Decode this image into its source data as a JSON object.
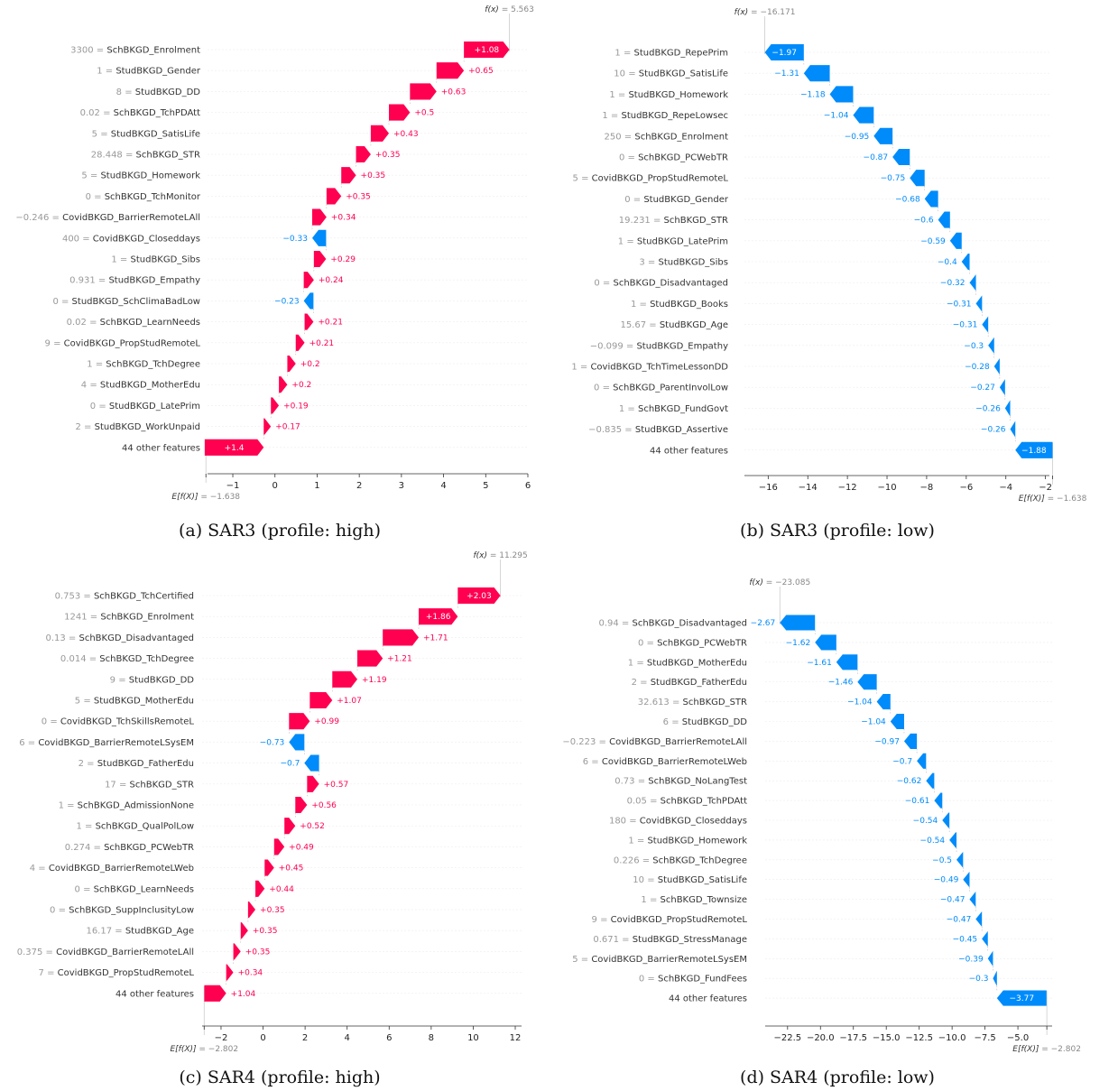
{
  "colors": {
    "positive": "#ff0051",
    "negative": "#008bfb",
    "axis": "#333333",
    "refline": "#dddddd"
  },
  "chart_data": [
    {
      "type": "waterfall",
      "caption": "(a) SAR3 (profile: high)",
      "fx": "5.563",
      "efx": "−1.638",
      "xlim": [
        -1.6,
        6
      ],
      "xticks": [
        -1,
        0,
        1,
        2,
        3,
        4,
        5,
        6
      ],
      "xtick_labels": [
        "−1",
        "0",
        "1",
        "2",
        "3",
        "4",
        "5",
        "6"
      ],
      "base_value": -1.638,
      "output_value": 5.563,
      "features": [
        {
          "value": "3300",
          "name": "SchBKGD_Enrolment",
          "shap": 1.08,
          "label": "+1.08"
        },
        {
          "value": "1",
          "name": "StudBKGD_Gender",
          "shap": 0.65,
          "label": "+0.65"
        },
        {
          "value": "8",
          "name": "StudBKGD_DD",
          "shap": 0.63,
          "label": "+0.63"
        },
        {
          "value": "0.02",
          "name": "SchBKGD_TchPDAtt",
          "shap": 0.5,
          "label": "+0.5"
        },
        {
          "value": "5",
          "name": "StudBKGD_SatisLife",
          "shap": 0.43,
          "label": "+0.43"
        },
        {
          "value": "28.448",
          "name": "SchBKGD_STR",
          "shap": 0.35,
          "label": "+0.35"
        },
        {
          "value": "5",
          "name": "StudBKGD_Homework",
          "shap": 0.35,
          "label": "+0.35"
        },
        {
          "value": "0",
          "name": "SchBKGD_TchMonitor",
          "shap": 0.35,
          "label": "+0.35"
        },
        {
          "value": "−0.246",
          "name": "CovidBKGD_BarrierRemoteLAll",
          "shap": 0.34,
          "label": "+0.34"
        },
        {
          "value": "400",
          "name": "CovidBKGD_Closeddays",
          "shap": -0.33,
          "label": "−0.33"
        },
        {
          "value": "1",
          "name": "StudBKGD_Sibs",
          "shap": 0.29,
          "label": "+0.29"
        },
        {
          "value": "0.931",
          "name": "StudBKGD_Empathy",
          "shap": 0.24,
          "label": "+0.24"
        },
        {
          "value": "0",
          "name": "StudBKGD_SchClimaBadLow",
          "shap": -0.23,
          "label": "−0.23"
        },
        {
          "value": "0.02",
          "name": "SchBKGD_LearnNeeds",
          "shap": 0.21,
          "label": "+0.21"
        },
        {
          "value": "9",
          "name": "CovidBKGD_PropStudRemoteL",
          "shap": 0.21,
          "label": "+0.21"
        },
        {
          "value": "1",
          "name": "SchBKGD_TchDegree",
          "shap": 0.2,
          "label": "+0.2"
        },
        {
          "value": "4",
          "name": "StudBKGD_MotherEdu",
          "shap": 0.2,
          "label": "+0.2"
        },
        {
          "value": "0",
          "name": "StudBKGD_LatePrim",
          "shap": 0.19,
          "label": "+0.19"
        },
        {
          "value": "2",
          "name": "StudBKGD_WorkUnpaid",
          "shap": 0.17,
          "label": "+0.17"
        },
        {
          "value": "",
          "name": "44 other features",
          "shap": 1.4,
          "label": "+1.4"
        }
      ]
    },
    {
      "type": "waterfall",
      "caption": "(b) SAR3 (profile: low)",
      "fx": "−16.171",
      "efx": "−1.638",
      "xlim": [
        -17.2,
        -1.8
      ],
      "xticks": [
        -16,
        -14,
        -12,
        -10,
        -8,
        -6,
        -4,
        -2
      ],
      "xtick_labels": [
        "−16",
        "−14",
        "−12",
        "−10",
        "−8",
        "−6",
        "−4",
        "−2"
      ],
      "base_value": -1.638,
      "output_value": -16.171,
      "features": [
        {
          "value": "1",
          "name": "StudBKGD_RepePrim",
          "shap": -1.97,
          "label": "−1.97"
        },
        {
          "value": "10",
          "name": "StudBKGD_SatisLife",
          "shap": -1.31,
          "label": "−1.31"
        },
        {
          "value": "1",
          "name": "StudBKGD_Homework",
          "shap": -1.18,
          "label": "−1.18"
        },
        {
          "value": "1",
          "name": "StudBKGD_RepeLowsec",
          "shap": -1.04,
          "label": "−1.04"
        },
        {
          "value": "250",
          "name": "SchBKGD_Enrolment",
          "shap": -0.95,
          "label": "−0.95"
        },
        {
          "value": "0",
          "name": "SchBKGD_PCWebTR",
          "shap": -0.87,
          "label": "−0.87"
        },
        {
          "value": "5",
          "name": "CovidBKGD_PropStudRemoteL",
          "shap": -0.75,
          "label": "−0.75"
        },
        {
          "value": "0",
          "name": "StudBKGD_Gender",
          "shap": -0.68,
          "label": "−0.68"
        },
        {
          "value": "19.231",
          "name": "SchBKGD_STR",
          "shap": -0.6,
          "label": "−0.6"
        },
        {
          "value": "1",
          "name": "StudBKGD_LatePrim",
          "shap": -0.59,
          "label": "−0.59"
        },
        {
          "value": "3",
          "name": "StudBKGD_Sibs",
          "shap": -0.4,
          "label": "−0.4"
        },
        {
          "value": "0",
          "name": "SchBKGD_Disadvantaged",
          "shap": -0.32,
          "label": "−0.32"
        },
        {
          "value": "1",
          "name": "StudBKGD_Books",
          "shap": -0.31,
          "label": "−0.31"
        },
        {
          "value": "15.67",
          "name": "StudBKGD_Age",
          "shap": -0.31,
          "label": "−0.31"
        },
        {
          "value": "−0.099",
          "name": "StudBKGD_Empathy",
          "shap": -0.3,
          "label": "−0.3"
        },
        {
          "value": "1",
          "name": "CovidBKGD_TchTimeLessonDD",
          "shap": -0.28,
          "label": "−0.28"
        },
        {
          "value": "0",
          "name": "SchBKGD_ParentInvolLow",
          "shap": -0.27,
          "label": "−0.27"
        },
        {
          "value": "1",
          "name": "SchBKGD_FundGovt",
          "shap": -0.26,
          "label": "−0.26"
        },
        {
          "value": "−0.835",
          "name": "StudBKGD_Assertive",
          "shap": -0.26,
          "label": "−0.26"
        },
        {
          "value": "",
          "name": "44 other features",
          "shap": -1.88,
          "label": "−1.88"
        }
      ]
    },
    {
      "type": "waterfall",
      "caption": "(c) SAR4 (profile: high)",
      "fx": "11.295",
      "efx": "−2.802",
      "xlim": [
        -2.9,
        12.3
      ],
      "xticks": [
        -2,
        0,
        2,
        4,
        6,
        8,
        10,
        12
      ],
      "xtick_labels": [
        "−2",
        "0",
        "2",
        "4",
        "6",
        "8",
        "10",
        "12"
      ],
      "base_value": -2.802,
      "output_value": 11.295,
      "features": [
        {
          "value": "0.753",
          "name": "SchBKGD_TchCertified",
          "shap": 2.03,
          "label": "+2.03"
        },
        {
          "value": "1241",
          "name": "SchBKGD_Enrolment",
          "shap": 1.86,
          "label": "+1.86"
        },
        {
          "value": "0.13",
          "name": "SchBKGD_Disadvantaged",
          "shap": 1.71,
          "label": "+1.71"
        },
        {
          "value": "0.014",
          "name": "SchBKGD_TchDegree",
          "shap": 1.21,
          "label": "+1.21"
        },
        {
          "value": "9",
          "name": "StudBKGD_DD",
          "shap": 1.19,
          "label": "+1.19"
        },
        {
          "value": "5",
          "name": "StudBKGD_MotherEdu",
          "shap": 1.07,
          "label": "+1.07"
        },
        {
          "value": "0",
          "name": "CovidBKGD_TchSkillsRemoteL",
          "shap": 0.99,
          "label": "+0.99"
        },
        {
          "value": "6",
          "name": "CovidBKGD_BarrierRemoteLSysEM",
          "shap": -0.73,
          "label": "−0.73"
        },
        {
          "value": "2",
          "name": "StudBKGD_FatherEdu",
          "shap": -0.7,
          "label": "−0.7"
        },
        {
          "value": "17",
          "name": "SchBKGD_STR",
          "shap": 0.57,
          "label": "+0.57"
        },
        {
          "value": "1",
          "name": "SchBKGD_AdmissionNone",
          "shap": 0.56,
          "label": "+0.56"
        },
        {
          "value": "1",
          "name": "SchBKGD_QualPolLow",
          "shap": 0.52,
          "label": "+0.52"
        },
        {
          "value": "0.274",
          "name": "SchBKGD_PCWebTR",
          "shap": 0.49,
          "label": "+0.49"
        },
        {
          "value": "4",
          "name": "CovidBKGD_BarrierRemoteLWeb",
          "shap": 0.45,
          "label": "+0.45"
        },
        {
          "value": "0",
          "name": "SchBKGD_LearnNeeds",
          "shap": 0.44,
          "label": "+0.44"
        },
        {
          "value": "0",
          "name": "SchBKGD_SuppInclusityLow",
          "shap": 0.35,
          "label": "+0.35"
        },
        {
          "value": "16.17",
          "name": "StudBKGD_Age",
          "shap": 0.35,
          "label": "+0.35"
        },
        {
          "value": "0.375",
          "name": "CovidBKGD_BarrierRemoteLAll",
          "shap": 0.35,
          "label": "+0.35"
        },
        {
          "value": "7",
          "name": "CovidBKGD_PropStudRemoteL",
          "shap": 0.34,
          "label": "+0.34"
        },
        {
          "value": "",
          "name": "44 other features",
          "shap": 1.04,
          "label": "+1.04"
        }
      ]
    },
    {
      "type": "waterfall",
      "caption": "(d) SAR4 (profile: low)",
      "fx": "−23.085",
      "efx": "−2.802",
      "xlim": [
        -24.2,
        -2.4
      ],
      "xticks": [
        -22.5,
        -20,
        -17.5,
        -15,
        -12.5,
        -10,
        -7.5,
        -5
      ],
      "xtick_labels": [
        "−22.5",
        "−20.0",
        "−17.5",
        "−15.0",
        "−12.5",
        "−10.0",
        "−7.5",
        "−5.0"
      ],
      "base_value": -2.802,
      "output_value": -23.085,
      "features": [
        {
          "value": "0.94",
          "name": "SchBKGD_Disadvantaged",
          "shap": -2.67,
          "label": "−2.67"
        },
        {
          "value": "0",
          "name": "SchBKGD_PCWebTR",
          "shap": -1.62,
          "label": "−1.62"
        },
        {
          "value": "1",
          "name": "StudBKGD_MotherEdu",
          "shap": -1.61,
          "label": "−1.61"
        },
        {
          "value": "2",
          "name": "StudBKGD_FatherEdu",
          "shap": -1.46,
          "label": "−1.46"
        },
        {
          "value": "32.613",
          "name": "SchBKGD_STR",
          "shap": -1.04,
          "label": "−1.04"
        },
        {
          "value": "6",
          "name": "StudBKGD_DD",
          "shap": -1.04,
          "label": "−1.04"
        },
        {
          "value": "−0.223",
          "name": "CovidBKGD_BarrierRemoteLAll",
          "shap": -0.97,
          "label": "−0.97"
        },
        {
          "value": "6",
          "name": "CovidBKGD_BarrierRemoteLWeb",
          "shap": -0.7,
          "label": "−0.7"
        },
        {
          "value": "0.73",
          "name": "SchBKGD_NoLangTest",
          "shap": -0.62,
          "label": "−0.62"
        },
        {
          "value": "0.05",
          "name": "SchBKGD_TchPDAtt",
          "shap": -0.61,
          "label": "−0.61"
        },
        {
          "value": "180",
          "name": "CovidBKGD_Closeddays",
          "shap": -0.54,
          "label": "−0.54"
        },
        {
          "value": "1",
          "name": "StudBKGD_Homework",
          "shap": -0.54,
          "label": "−0.54"
        },
        {
          "value": "0.226",
          "name": "SchBKGD_TchDegree",
          "shap": -0.5,
          "label": "−0.5"
        },
        {
          "value": "10",
          "name": "StudBKGD_SatisLife",
          "shap": -0.49,
          "label": "−0.49"
        },
        {
          "value": "1",
          "name": "SchBKGD_Townsize",
          "shap": -0.47,
          "label": "−0.47"
        },
        {
          "value": "9",
          "name": "CovidBKGD_PropStudRemoteL",
          "shap": -0.47,
          "label": "−0.47"
        },
        {
          "value": "0.671",
          "name": "StudBKGD_StressManage",
          "shap": -0.45,
          "label": "−0.45"
        },
        {
          "value": "5",
          "name": "CovidBKGD_BarrierRemoteLSysEM",
          "shap": -0.39,
          "label": "−0.39"
        },
        {
          "value": "0",
          "name": "SchBKGD_FundFees",
          "shap": -0.3,
          "label": "−0.3"
        },
        {
          "value": "",
          "name": "44 other features",
          "shap": -3.77,
          "label": "−3.77"
        }
      ]
    }
  ]
}
